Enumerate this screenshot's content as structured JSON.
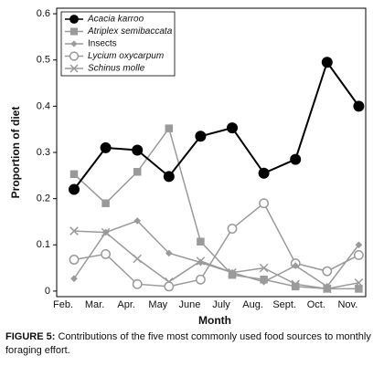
{
  "chart_data": {
    "type": "line",
    "xlabel": "Month",
    "ylabel": "Proportion of diet",
    "categories": [
      "Feb.",
      "Mar.",
      "Apr.",
      "May",
      "June",
      "July",
      "Aug.",
      "Sept.",
      "Oct.",
      "Nov."
    ],
    "ylim": [
      -0.012,
      0.612
    ],
    "yticks": [
      0,
      0.1,
      0.2,
      0.3,
      0.4,
      0.5,
      0.6
    ],
    "legend": "upper left",
    "series": [
      {
        "name": "Acacia karroo",
        "color": "#000000",
        "marker": "circle",
        "values": [
          0.22,
          0.31,
          0.305,
          0.248,
          0.335,
          0.353,
          0.255,
          0.285,
          0.495,
          0.4
        ]
      },
      {
        "name": "Atriplex semibaccata",
        "color": "#9a9a9a",
        "marker": "square",
        "values": [
          0.253,
          0.19,
          0.258,
          0.352,
          0.107,
          0.035,
          0.025,
          0.01,
          0.005,
          0.005
        ]
      },
      {
        "name": "Insects",
        "color": "#9a9a9a",
        "marker": "diamond",
        "values": [
          0.027,
          0.127,
          0.152,
          0.082,
          0.062,
          0.04,
          0.02,
          0.055,
          0.01,
          0.1
        ]
      },
      {
        "name": "Lycium oxycarpum",
        "color": "#9a9a9a",
        "marker": "open-circle",
        "values": [
          0.068,
          0.08,
          0.015,
          0.01,
          0.025,
          0.135,
          0.19,
          0.06,
          0.043,
          0.078
        ]
      },
      {
        "name": "Schinus molle",
        "color": "#9a9a9a",
        "marker": "x",
        "values": [
          0.13,
          0.127,
          0.07,
          0.02,
          0.065,
          0.04,
          0.05,
          0.015,
          0.005,
          0.018
        ]
      }
    ],
    "caption_label": "FIGURE 5:",
    "caption": "Contributions of the five most commonly used food sources to monthly foraging effort."
  }
}
